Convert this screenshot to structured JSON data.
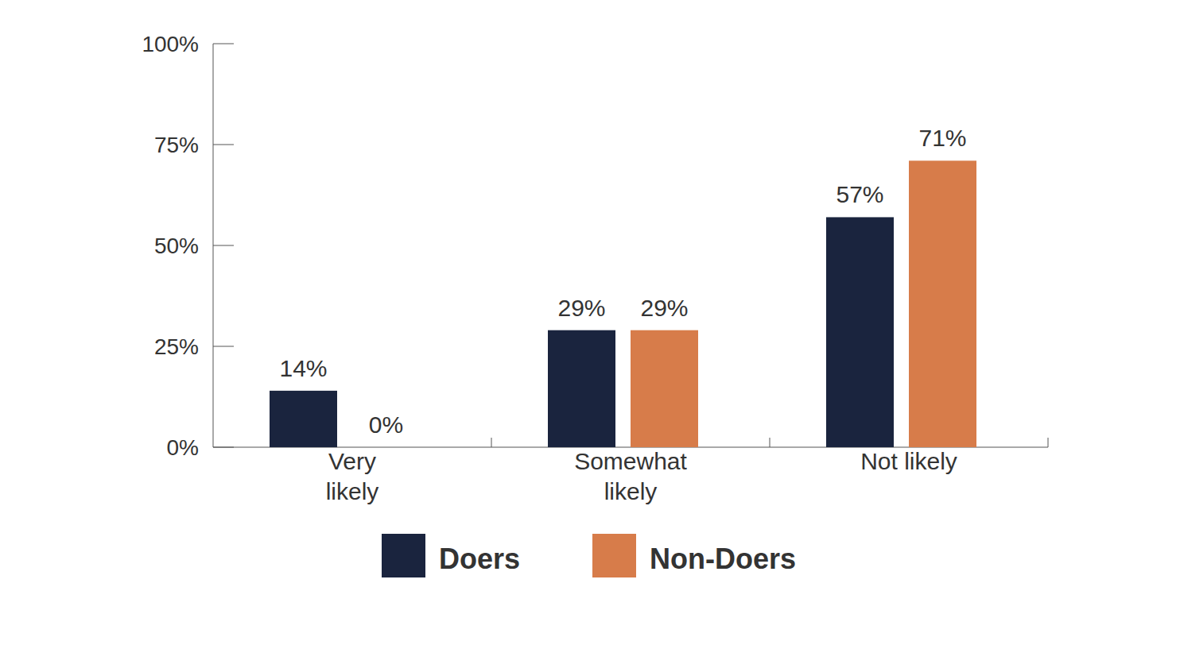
{
  "chart_data": {
    "type": "bar",
    "categories": [
      "Very likely",
      "Somewhat likely",
      "Not likely"
    ],
    "series": [
      {
        "name": "Doers",
        "color": "#1a243e",
        "values": [
          14,
          29,
          57
        ],
        "value_labels": [
          "14%",
          "29%",
          "57%"
        ]
      },
      {
        "name": "Non-Doers",
        "color": "#d77c4a",
        "values": [
          0,
          29,
          71
        ],
        "value_labels": [
          "0%",
          "29%",
          "71%"
        ]
      }
    ],
    "ylim": [
      0,
      100
    ],
    "yticks": [
      {
        "value": 0,
        "label": "0%"
      },
      {
        "value": 25,
        "label": "25%"
      },
      {
        "value": 50,
        "label": "50%"
      },
      {
        "value": 75,
        "label": "75%"
      },
      {
        "value": 100,
        "label": "100%"
      }
    ],
    "grid": false,
    "legend": "bottom",
    "data_labels": true
  }
}
